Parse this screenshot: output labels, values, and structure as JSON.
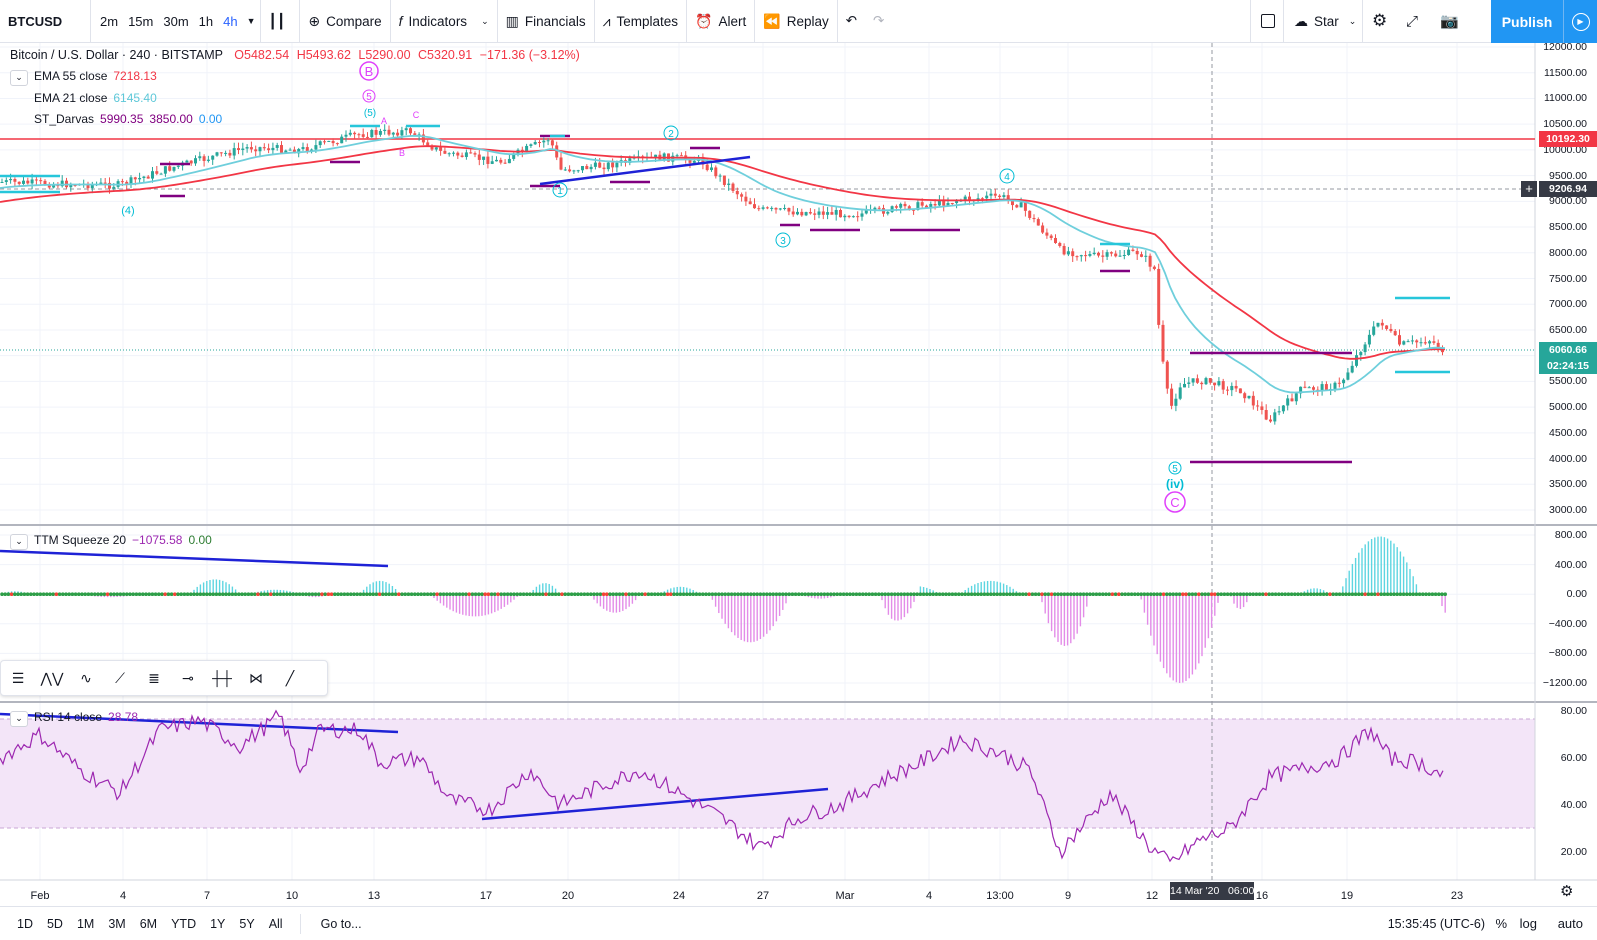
{
  "toolbar": {
    "symbol": "BTCUSD",
    "intervals": [
      "2m",
      "15m",
      "30m",
      "1h",
      "4h"
    ],
    "active_interval": "4h",
    "compare": "Compare",
    "indicators": "Indicators",
    "financials": "Financials",
    "templates": "Templates",
    "alert": "Alert",
    "replay": "Replay",
    "star": "Star",
    "publish": "Publish"
  },
  "header": {
    "title": "Bitcoin / U.S. Dollar · 240 · BITSTAMP",
    "open": "O5482.54",
    "high": "H5493.62",
    "low": "L5290.00",
    "close": "C5320.91",
    "change": "−171.36 (−3.12%)"
  },
  "indicators": {
    "ema55": {
      "label": "EMA 55 close",
      "value": "7218.13",
      "color": "#f23645"
    },
    "ema21": {
      "label": "EMA 21 close",
      "value": "6145.40",
      "color": "#5ec8d8"
    },
    "darvas": {
      "label": "ST_Darvas",
      "v1": "5990.35",
      "v2": "3850.00",
      "v3": "0.00"
    },
    "ttm": {
      "label": "TTM Squeeze 20",
      "v1": "−1075.58",
      "v2": "0.00"
    },
    "rsi": {
      "label": "RSI 14 close",
      "value": "28.78"
    }
  },
  "price_axis": [
    "12000.00",
    "11500.00",
    "11000.00",
    "10500.00",
    "10000.00",
    "9500.00",
    "9000.00",
    "8500.00",
    "8000.00",
    "7500.00",
    "7000.00",
    "6500.00",
    "6000.00",
    "5500.00",
    "5000.00",
    "4500.00",
    "4000.00",
    "3500.00",
    "3000.00"
  ],
  "price_badges": {
    "resistance": "10192.30",
    "crosshair": "9206.94",
    "last": "6060.66",
    "countdown": "02:24:15"
  },
  "ttm_axis": [
    "800.00",
    "400.00",
    "0.00",
    "−400.00",
    "−800.00",
    "−1200.00"
  ],
  "rsi_axis": [
    "80.00",
    "60.00",
    "40.00",
    "20.00"
  ],
  "time_axis": [
    "Feb",
    "4",
    "7",
    "10",
    "13",
    "17",
    "20",
    "24",
    "27",
    "Mar",
    "4",
    "13:00",
    "9",
    "12",
    "16",
    "19",
    "23"
  ],
  "crosshair_time": "14 Mar '20   06:00",
  "wave_labels": {
    "B": "B",
    "C": "C",
    "iv": "(iv)",
    "w1": "1",
    "w2": "2",
    "w3": "3",
    "w4": "4",
    "w5": "5",
    "w4a": "(4)",
    "w5a": "5",
    "w5b": "(5)",
    "A": "A",
    "Bs": "B",
    "Cs": "C"
  },
  "bottombar": {
    "ranges": [
      "1D",
      "5D",
      "1M",
      "3M",
      "6M",
      "YTD",
      "1Y",
      "5Y",
      "All"
    ],
    "goto": "Go to...",
    "clock": "15:35:45 (UTC-6)",
    "percent": "%",
    "log": "log",
    "auto": "auto"
  },
  "colors": {
    "up": "#26a69a",
    "down": "#ef5350",
    "ema55": "#f23645",
    "ema21": "#6fcfdc",
    "trendline": "#1e22d6",
    "darvas": "#800080",
    "rsi": "#9c27b0"
  }
}
